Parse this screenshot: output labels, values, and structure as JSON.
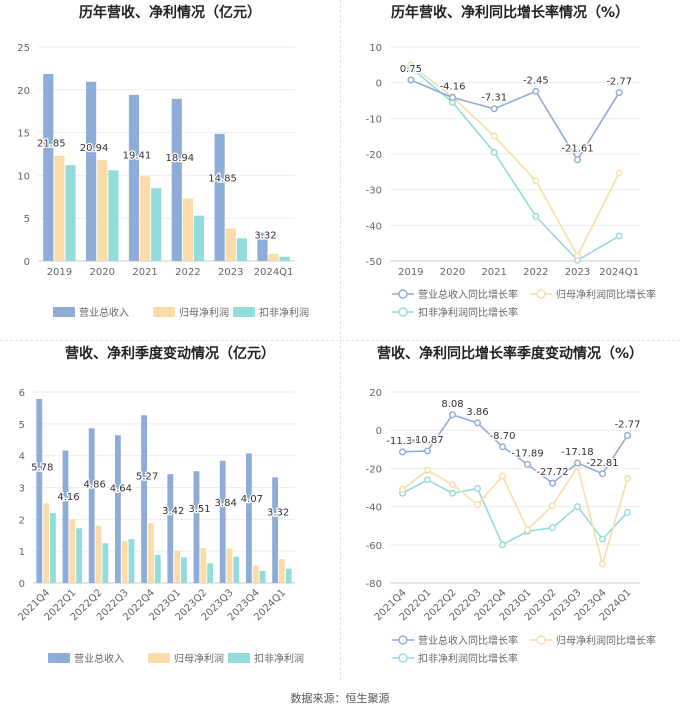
{
  "source_label": "数据来源：恒生聚源",
  "colors": {
    "revenue": "#8eacd8",
    "net_profit": "#fbdca8",
    "deducted_profit": "#93dcdc",
    "axis_text": "#666666",
    "grid": "#eeeeee",
    "title": "#222222",
    "label": "#333333"
  },
  "chart_data": [
    {
      "id": "annual-values",
      "type": "bar",
      "title": "历年营收、净利情况（亿元）",
      "categories": [
        "2019",
        "2020",
        "2021",
        "2022",
        "2023",
        "2024Q1"
      ],
      "ylim": [
        0,
        25
      ],
      "yticks": [
        0,
        5,
        10,
        15,
        20,
        25
      ],
      "grid": true,
      "legend_position": "bottom",
      "series": [
        {
          "name": "营业总收入",
          "values": [
            21.85,
            20.94,
            19.41,
            18.94,
            14.85,
            3.32
          ],
          "color_key": "revenue"
        },
        {
          "name": "归母净利润",
          "values": [
            12.3,
            11.8,
            9.9,
            7.3,
            3.8,
            0.85
          ],
          "color_key": "net_profit"
        },
        {
          "name": "扣非净利润",
          "values": [
            11.2,
            10.6,
            8.5,
            5.3,
            2.65,
            0.5
          ],
          "color_key": "deducted_profit"
        }
      ],
      "labels": [
        "21.85",
        "20.94",
        "19.41",
        "18.94",
        "14.85",
        "3.32"
      ]
    },
    {
      "id": "annual-growth",
      "type": "line",
      "title": "历年营收、净利同比增长率情况（%）",
      "categories": [
        "2019",
        "2020",
        "2021",
        "2022",
        "2023",
        "2024Q1"
      ],
      "ylim": [
        -50,
        10
      ],
      "yticks": [
        10,
        0,
        -10,
        -20,
        -30,
        -40,
        -50
      ],
      "grid": true,
      "legend_position": "bottom",
      "series": [
        {
          "name": "营业总收入同比增长率",
          "values": [
            0.75,
            -4.16,
            -7.31,
            -2.45,
            -21.61,
            -2.77
          ],
          "color_key": "revenue"
        },
        {
          "name": "归母净利润同比增长率",
          "values": [
            5.0,
            -4.0,
            -15.0,
            -27.5,
            -48.5,
            -25.3
          ],
          "color_key": "net_profit"
        },
        {
          "name": "扣非净利润同比增长率",
          "values": [
            4.2,
            -5.5,
            -19.5,
            -37.5,
            -49.8,
            -43.0
          ],
          "color_key": "deducted_profit"
        }
      ],
      "labels": [
        "0.75",
        "-4.16",
        "-7.31",
        "-2.45",
        "-21.61",
        "-2.77"
      ]
    },
    {
      "id": "quarterly-values",
      "type": "bar",
      "title": "营收、净利季度变动情况（亿元）",
      "categories": [
        "2021Q4",
        "2022Q1",
        "2022Q2",
        "2022Q3",
        "2022Q4",
        "2023Q1",
        "2023Q2",
        "2023Q3",
        "2023Q4",
        "2024Q1"
      ],
      "ylim": [
        0,
        6
      ],
      "yticks": [
        0,
        1,
        2,
        3,
        4,
        5,
        6
      ],
      "grid": true,
      "legend_position": "bottom",
      "series": [
        {
          "name": "营业总收入",
          "values": [
            5.78,
            4.16,
            4.86,
            4.64,
            5.27,
            3.42,
            3.51,
            3.84,
            4.07,
            3.32
          ],
          "color_key": "revenue"
        },
        {
          "name": "归母净利润",
          "values": [
            2.5,
            2.0,
            1.8,
            1.32,
            1.88,
            1.02,
            1.1,
            1.08,
            0.55,
            0.75
          ],
          "color_key": "net_profit"
        },
        {
          "name": "扣非净利润",
          "values": [
            2.2,
            1.72,
            1.25,
            1.38,
            0.88,
            0.8,
            0.62,
            0.83,
            0.38,
            0.45
          ],
          "color_key": "deducted_profit"
        }
      ],
      "labels": [
        "5.78",
        "4.16",
        "4.86",
        "4.64",
        "5.27",
        "3.42",
        "3.51",
        "3.84",
        "4.07",
        "3.32"
      ]
    },
    {
      "id": "quarterly-growth",
      "type": "line",
      "title": "营收、净利同比增长率季度变动情况（%）",
      "categories": [
        "2021Q4",
        "2022Q1",
        "2022Q2",
        "2022Q3",
        "2022Q4",
        "2023Q1",
        "2023Q2",
        "2023Q3",
        "2023Q4",
        "2024Q1"
      ],
      "ylim": [
        -80,
        20
      ],
      "yticks": [
        20,
        0,
        -20,
        -40,
        -60,
        -80
      ],
      "grid": true,
      "legend_position": "bottom",
      "series": [
        {
          "name": "营业总收入同比增长率",
          "values": [
            -11.34,
            -10.87,
            8.08,
            3.86,
            -8.7,
            -17.89,
            -27.72,
            -17.18,
            -22.81,
            -2.77
          ],
          "color_key": "revenue"
        },
        {
          "name": "归母净利润同比增长率",
          "values": [
            -31.0,
            -21.0,
            -28.5,
            -39.0,
            -24.0,
            -52.0,
            -39.5,
            -19.0,
            -70.0,
            -25.3
          ],
          "color_key": "net_profit"
        },
        {
          "name": "扣非净利润同比增长率",
          "values": [
            -33.0,
            -26.0,
            -33.0,
            -30.5,
            -60.0,
            -53.0,
            -51.0,
            -40.0,
            -57.0,
            -43.0
          ],
          "color_key": "deducted_profit"
        }
      ],
      "labels": [
        "-11.34",
        "-10.87",
        "8.08",
        "3.86",
        "-8.70",
        "-17.89",
        "-27.72",
        "-17.18",
        "-22.81",
        "-2.77"
      ]
    }
  ]
}
